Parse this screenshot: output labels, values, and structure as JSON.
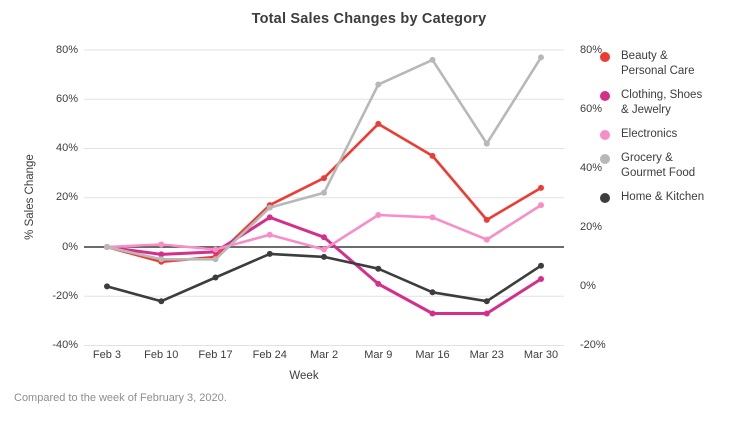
{
  "chart_data": {
    "type": "line",
    "title": "Total Sales Changes by Category",
    "xlabel": "Week",
    "ylabel": "% Sales Change",
    "footnote": "Compared to the week of February 3, 2020.",
    "categories": [
      "Feb 3",
      "Feb 10",
      "Feb 17",
      "Feb 24",
      "Mar 2",
      "Mar 9",
      "Mar 16",
      "Mar 23",
      "Mar 30"
    ],
    "series": [
      {
        "name": "Beauty & Personal Care",
        "legend_lines": [
          "Beauty &",
          "Personal Care"
        ],
        "color": "#ee3b33",
        "axis": "left",
        "line_width": 2.6,
        "values": [
          0,
          -6,
          -4,
          17,
          28,
          50,
          37,
          11,
          24
        ]
      },
      {
        "name": "Clothing, Shoes & Jewelry",
        "legend_lines": [
          "Clothing, Shoes",
          "& Jewelry"
        ],
        "color": "#d62e8b",
        "axis": "left",
        "line_width": 3,
        "values": [
          0,
          -3,
          -2,
          12,
          4,
          -15,
          -27,
          -27,
          -13
        ]
      },
      {
        "name": "Electronics",
        "legend_lines": [
          "Electronics"
        ],
        "color": "#f98dc7",
        "axis": "left",
        "line_width": 2.6,
        "values": [
          0,
          1,
          -1,
          5,
          -1,
          13,
          12,
          3,
          17
        ]
      },
      {
        "name": "Grocery & Gourmet Food",
        "legend_lines": [
          "Grocery &",
          "Gourmet Food"
        ],
        "color": "#b8b8b8",
        "axis": "left",
        "line_width": 2.6,
        "values": [
          0,
          -5,
          -5,
          16,
          22,
          66,
          76,
          42,
          77
        ]
      },
      {
        "name": "Home & Kitchen",
        "legend_lines": [
          "Home & Kitchen"
        ],
        "color": "#3d3d3d",
        "axis": "right",
        "line_width": 2.6,
        "values": [
          0,
          -5,
          3,
          11,
          10,
          6,
          -2,
          -5,
          7
        ]
      }
    ],
    "axes": {
      "left": {
        "min": -40,
        "max": 80,
        "tick_values": [
          80,
          60,
          40,
          20,
          0,
          -20,
          -40
        ],
        "ticks": [
          "80%",
          "60%",
          "40%",
          "20%",
          "0%",
          "-20%",
          "-40%"
        ]
      },
      "right": {
        "min": -20,
        "max": 80,
        "tick_values": [
          80,
          60,
          40,
          20,
          0,
          -20
        ],
        "ticks": [
          "80%",
          "60%",
          "40%",
          "20%",
          "0%",
          "-20%"
        ]
      }
    },
    "grid": true,
    "grid_color": "#e2e2e2",
    "zeroline_color": "#3a3a3a",
    "legend_position": "right",
    "background_color": "#ffffff",
    "title_color": "#3d3d3d",
    "footnote_color": "#8e8e8e"
  }
}
